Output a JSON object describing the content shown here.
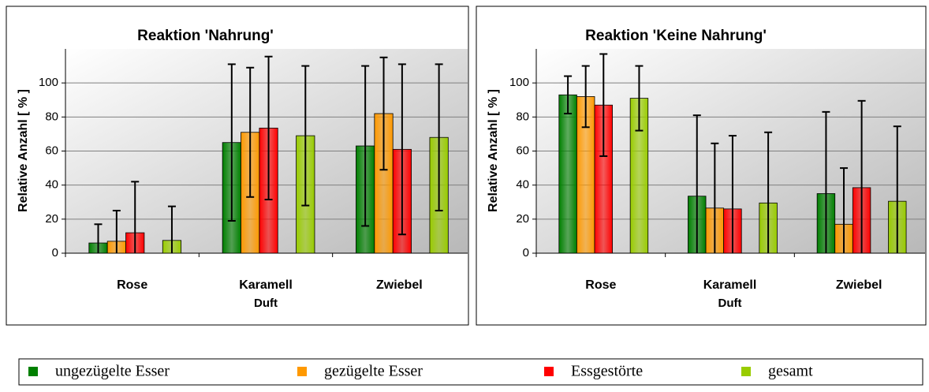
{
  "chart_data": [
    {
      "type": "bar",
      "title": "Reaktion 'Nahrung'",
      "ylabel": "Relative Anzahl [ % ]",
      "xlabel": "Duft",
      "categories": [
        "Rose",
        "Karamell",
        "Zwiebel"
      ],
      "ylim": [
        0,
        120
      ],
      "yticks": [
        0,
        20,
        40,
        60,
        80,
        100
      ],
      "grid": true,
      "series": [
        {
          "values": [
            6,
            65,
            63
          ],
          "errors": [
            11,
            46,
            47
          ]
        },
        {
          "values": [
            7,
            71,
            82
          ],
          "errors": [
            18,
            38,
            33
          ]
        },
        {
          "values": [
            12,
            73.5,
            61
          ],
          "errors": [
            30,
            42,
            50
          ]
        },
        {
          "values": [
            7.5,
            69,
            68
          ],
          "errors": [
            20,
            41,
            43
          ]
        }
      ]
    },
    {
      "type": "bar",
      "title": "Reaktion 'Keine Nahrung'",
      "ylabel": "Relative Anzahl [ % ]",
      "xlabel": "Duft",
      "categories": [
        "Rose",
        "Karamell",
        "Zwiebel"
      ],
      "ylim": [
        0,
        120
      ],
      "yticks": [
        0,
        20,
        40,
        60,
        80,
        100
      ],
      "grid": true,
      "series": [
        {
          "values": [
            93,
            33.5,
            35
          ],
          "errors": [
            11,
            47.5,
            48
          ]
        },
        {
          "values": [
            92,
            26.5,
            17
          ],
          "errors": [
            18,
            38,
            33
          ]
        },
        {
          "values": [
            87,
            26,
            38.5
          ],
          "errors": [
            30,
            43,
            51
          ]
        },
        {
          "values": [
            91,
            29.5,
            30.5
          ],
          "errors": [
            19,
            41.5,
            44
          ]
        }
      ]
    }
  ],
  "legend": {
    "series": [
      {
        "name": "ungezügelte Esser",
        "color": "#008000"
      },
      {
        "name": "gezügelte Esser",
        "color": "#ff9900"
      },
      {
        "name": "Essgestörte",
        "color": "#ff0000"
      },
      {
        "name": "gesamt",
        "color": "#99cc00"
      }
    ]
  }
}
